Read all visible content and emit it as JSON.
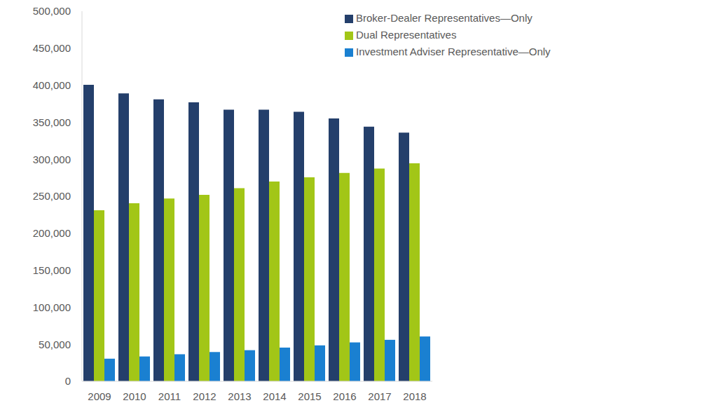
{
  "chart_data": {
    "type": "bar",
    "categories": [
      "2009",
      "2010",
      "2011",
      "2012",
      "2013",
      "2014",
      "2015",
      "2016",
      "2017",
      "2018"
    ],
    "series": [
      {
        "name": "Broker-Dealer Representatives—Only",
        "color": "#243f6b",
        "values": [
          400500,
          389000,
          381000,
          377000,
          367000,
          367000,
          364000,
          355000,
          344000,
          336000
        ]
      },
      {
        "name": "Dual Representatives",
        "color": "#a2c617",
        "values": [
          231000,
          240500,
          247000,
          252000,
          261000,
          270000,
          275500,
          281500,
          287500,
          294500
        ]
      },
      {
        "name": "Investment Adviser Representative—Only",
        "color": "#1a80d1",
        "values": [
          30500,
          33500,
          36500,
          39500,
          42000,
          45500,
          48500,
          52500,
          56000,
          60500
        ]
      }
    ],
    "ylim": [
      0,
      500000
    ],
    "yticks": [
      0,
      {
        "value": 50000,
        "label": "50,000"
      },
      {
        "value": 100000,
        "label": "100,000"
      },
      {
        "value": 150000,
        "label": "150,000"
      },
      {
        "value": 200000,
        "label": "200,000"
      },
      {
        "value": 250000,
        "label": "250,000"
      },
      {
        "value": 300000,
        "label": "300,000"
      },
      {
        "value": 350000,
        "label": "350,000"
      },
      {
        "value": 400000,
        "label": "400,000"
      },
      {
        "value": 450000,
        "label": "450,000"
      },
      {
        "value": 500000,
        "label": "500,000"
      }
    ],
    "grid": false,
    "legend": "top right"
  }
}
